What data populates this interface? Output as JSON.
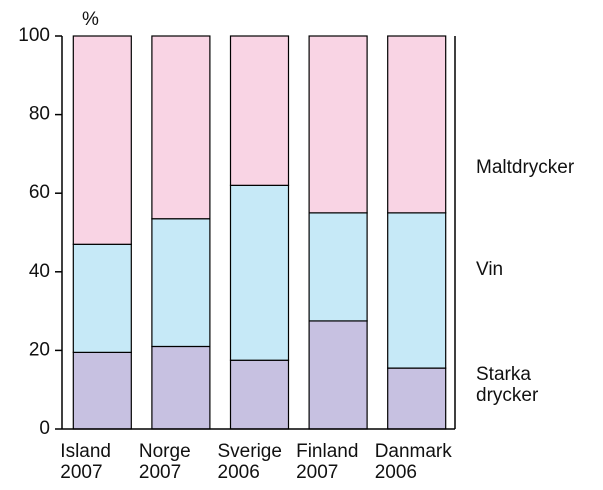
{
  "chart_data": {
    "type": "stacked_bar",
    "y_label": "%",
    "categories": [
      "Island\n2007",
      "Norge\n2007",
      "Sverige\n2006",
      "Finland\n2007",
      "Danmark\n2006"
    ],
    "series": [
      {
        "name": "Starka\ndrycker",
        "color": "#c7c1e1",
        "values": [
          19.5,
          21,
          17.5,
          27.5,
          15.5
        ]
      },
      {
        "name": "Vin",
        "color": "#c6e9f7",
        "values": [
          27.5,
          32.5,
          44.5,
          27.5,
          39.5
        ]
      },
      {
        "name": "Maltdrycker",
        "color": "#f9d4e4",
        "values": [
          53,
          46.5,
          38,
          45,
          45
        ]
      }
    ],
    "ylim": [
      0,
      100
    ],
    "yticks": [
      0,
      20,
      40,
      60,
      80,
      100
    ]
  }
}
